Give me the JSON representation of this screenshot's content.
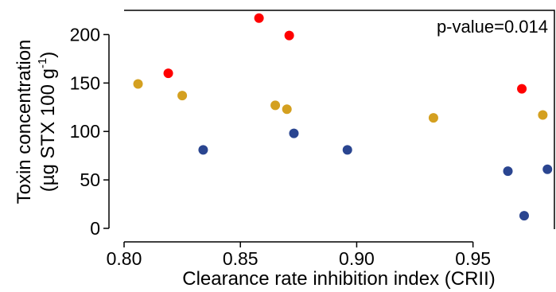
{
  "chart_data": {
    "type": "scatter",
    "xlabel": "Clearance rate inhibition index (CRII)",
    "ylabel_line1": "Toxin concentration",
    "ylabel_line2_prefix": "(µg STX 100 g",
    "ylabel_line2_sup": "-1",
    "ylabel_line2_suffix": ")",
    "annotation": "p-value=0.014",
    "xlim": [
      0.8,
      0.985
    ],
    "ylim": [
      0,
      225
    ],
    "x_ticks": [
      {
        "value": 0.8,
        "label": "0.80"
      },
      {
        "value": 0.85,
        "label": "0.85"
      },
      {
        "value": 0.9,
        "label": "0.90"
      },
      {
        "value": 0.95,
        "label": "0.95"
      }
    ],
    "y_ticks": [
      {
        "value": 0,
        "label": "0"
      },
      {
        "value": 50,
        "label": "50"
      },
      {
        "value": 100,
        "label": "100"
      },
      {
        "value": 150,
        "label": "150"
      },
      {
        "value": 200,
        "label": "200"
      }
    ],
    "grid": false,
    "legend": "none",
    "series": [
      {
        "color": "#ff0000",
        "points": [
          {
            "x": 0.819,
            "y": 160
          },
          {
            "x": 0.858,
            "y": 217
          },
          {
            "x": 0.871,
            "y": 199
          },
          {
            "x": 0.971,
            "y": 144
          }
        ]
      },
      {
        "color": "#d4a020",
        "points": [
          {
            "x": 0.806,
            "y": 149
          },
          {
            "x": 0.825,
            "y": 137
          },
          {
            "x": 0.865,
            "y": 127
          },
          {
            "x": 0.87,
            "y": 123
          },
          {
            "x": 0.933,
            "y": 114
          },
          {
            "x": 0.98,
            "y": 117
          }
        ]
      },
      {
        "color": "#2a4590",
        "points": [
          {
            "x": 0.834,
            "y": 81
          },
          {
            "x": 0.873,
            "y": 98
          },
          {
            "x": 0.896,
            "y": 81
          },
          {
            "x": 0.965,
            "y": 59
          },
          {
            "x": 0.972,
            "y": 13
          },
          {
            "x": 0.982,
            "y": 61
          }
        ]
      }
    ]
  }
}
